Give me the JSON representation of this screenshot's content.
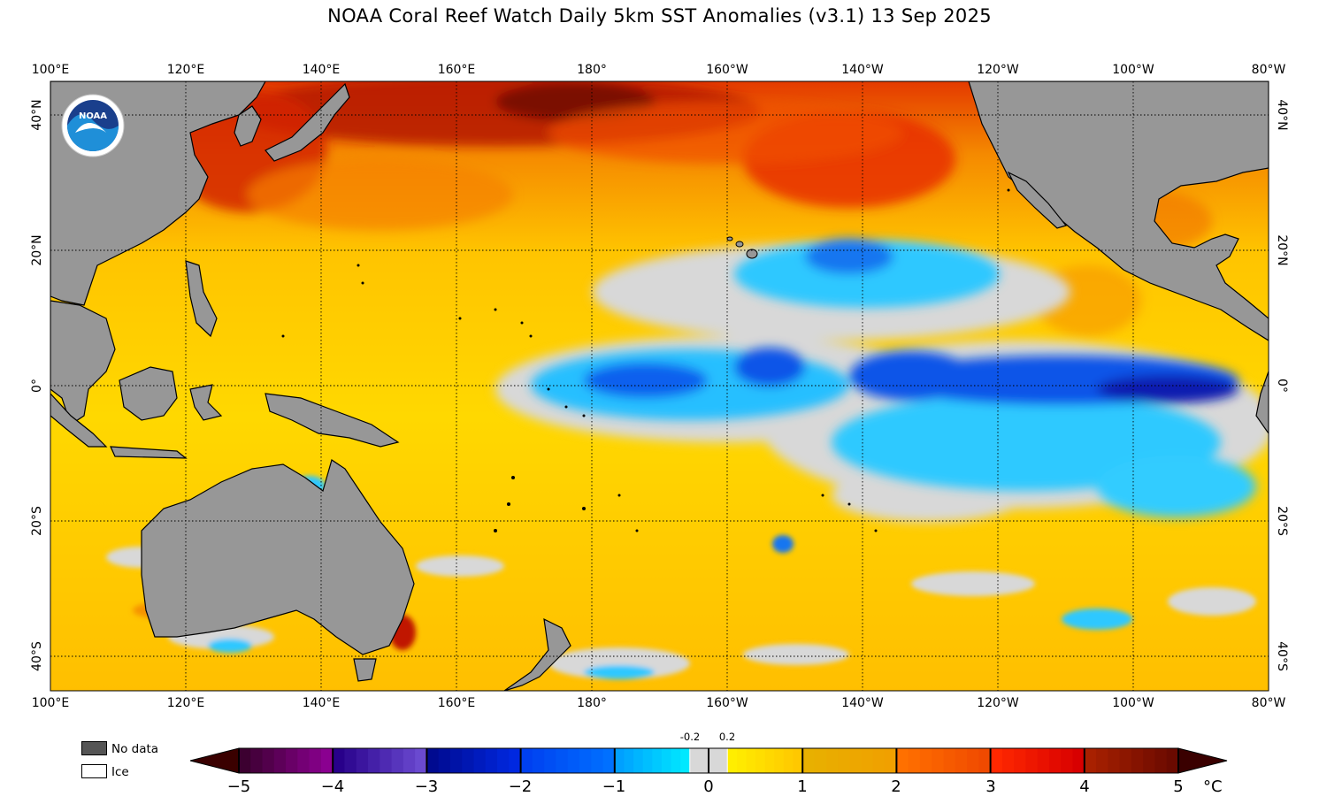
{
  "title": "NOAA Coral Reef Watch Daily 5km SST Anomalies  (v3.1)   13 Sep 2025",
  "lon_labels": [
    "100°E",
    "120°E",
    "140°E",
    "160°E",
    "180°",
    "160°W",
    "140°W",
    "120°W",
    "100°W",
    "80°W"
  ],
  "lat_labels": [
    "40°N",
    "20°N",
    "0°",
    "20°S",
    "40°S"
  ],
  "logo_text": "NOAA",
  "legend": {
    "no_data_label": "No data",
    "no_data_color": "#555555",
    "ice_label": "Ice",
    "ice_color": "#ffffff",
    "land_color": "#979797"
  },
  "colorbar": {
    "ticks": [
      "−5",
      "−4",
      "−3",
      "−2",
      "−1",
      "0",
      "1",
      "2",
      "3",
      "4",
      "5"
    ],
    "small_labels": [
      "-0.2",
      "0.2"
    ],
    "unit": "°C",
    "range": [
      -5,
      5
    ]
  },
  "colors": {
    "neutral": "#d8d8d8",
    "positive_low": "#ffe100",
    "positive_high": "#8a1b00",
    "negative_low": "#00c8ff",
    "negative_high": "#0015a8"
  }
}
